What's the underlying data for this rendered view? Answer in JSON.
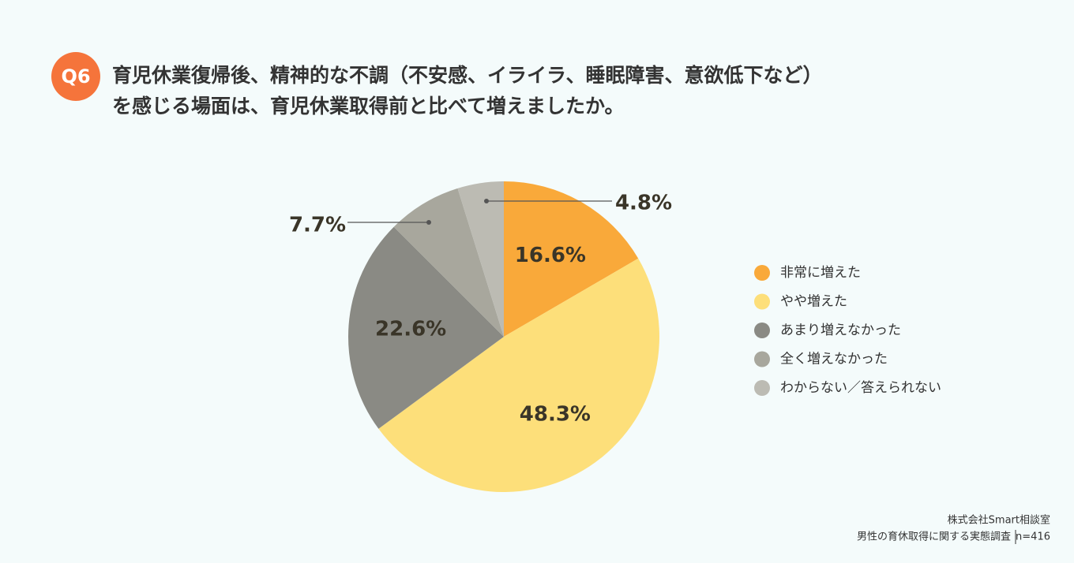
{
  "badge": "Q6",
  "chart_data": {
    "type": "pie",
    "title": [
      "育児休業復帰後、精神的な不調（不安感、イライラ、睡眠障害、意欲低下など）",
      "を感じる場面は、育児休業取得前と比べて増えましたか。"
    ],
    "categories": [
      "非常に増えた",
      "やや増えた",
      "あまり増えなかった",
      "全く増えなかった",
      "わからない／答えられない"
    ],
    "values": [
      16.6,
      48.3,
      22.6,
      7.7,
      4.8
    ],
    "value_labels": [
      "16.6%",
      "48.3%",
      "22.6%",
      "7.7%",
      "4.8%"
    ],
    "colors": [
      "#f9a93a",
      "#fddf7a",
      "#8a8a84",
      "#a8a79d",
      "#bcbbb3"
    ]
  },
  "source": {
    "company": "株式会社Smart相談室",
    "survey": "男性の育休取得に関する実態調査",
    "n": "n=416"
  }
}
